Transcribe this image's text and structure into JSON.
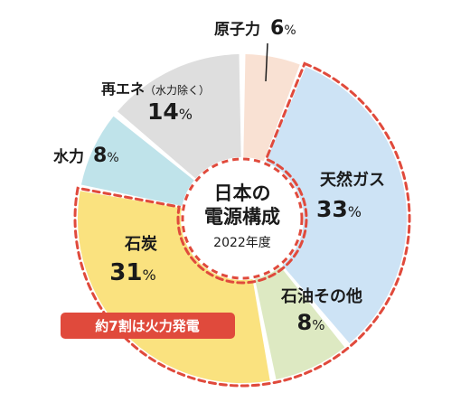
{
  "chart_data": {
    "type": "pie",
    "style": "donut",
    "title": "日本の電源構成",
    "subtitle": "2022年度",
    "slices": [
      {
        "name": "原子力",
        "value": 6,
        "color": "#f9e1d3"
      },
      {
        "name": "天然ガス",
        "value": 33,
        "color": "#cde3f5"
      },
      {
        "name": "石油その他",
        "value": 8,
        "color": "#dde9c2"
      },
      {
        "name": "石炭",
        "value": 31,
        "color": "#fae27f"
      },
      {
        "name": "水力",
        "value": 8,
        "color": "#bfe3ea"
      },
      {
        "name": "再エネ",
        "name_suffix": "（水力除く）",
        "value": 14,
        "color": "#dedede"
      }
    ],
    "percent_sign": "%",
    "annotation": "約7割は火力発電",
    "annotation_color": "#e04a3c",
    "highlight_outline_color": "#e04a3c"
  }
}
